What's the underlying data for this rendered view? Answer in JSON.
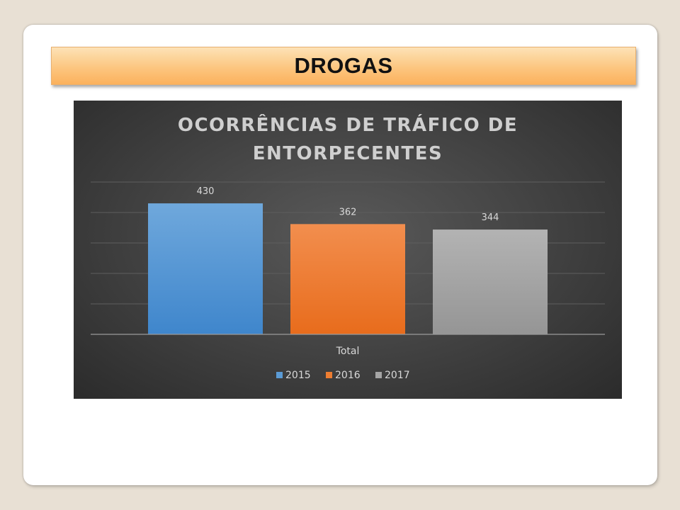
{
  "slide": {
    "title": "DROGAS"
  },
  "chart_data": {
    "type": "bar",
    "title": "OCORRÊNCIAS DE TRÁFICO DE ENTORPECENTES",
    "title_lines": [
      "OCORRÊNCIAS DE TRÁFICO DE",
      "ENTORPECENTES"
    ],
    "categories": [
      "Total"
    ],
    "series": [
      {
        "name": "2015",
        "values": [
          430
        ],
        "color": "#5b9bd5"
      },
      {
        "name": "2016",
        "values": [
          362
        ],
        "color": "#ed7d31"
      },
      {
        "name": "2017",
        "values": [
          344
        ],
        "color": "#a5a5a5"
      }
    ],
    "xlabel": "",
    "ylabel": "",
    "ylim": [
      0,
      500
    ],
    "grid": true,
    "data_labels": true,
    "legend": "bottom"
  }
}
